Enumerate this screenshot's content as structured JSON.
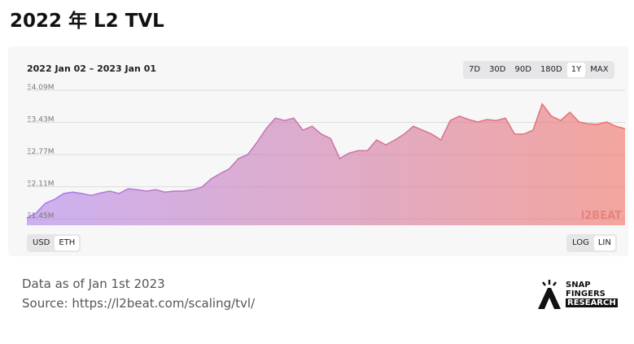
{
  "header": {
    "title": "2022 年 L2 TVL"
  },
  "chart_data": {
    "type": "area",
    "subtitle": "2022 Jan 02 – 2023 Jan 01",
    "values": [
      1.47,
      1.57,
      1.77,
      1.85,
      1.97,
      2.0,
      1.97,
      1.93,
      1.98,
      2.02,
      1.97,
      2.07,
      2.05,
      2.02,
      2.05,
      2.0,
      2.02,
      2.02,
      2.05,
      2.1,
      2.27,
      2.38,
      2.48,
      2.69,
      2.77,
      3.02,
      3.3,
      3.52,
      3.47,
      3.52,
      3.27,
      3.35,
      3.19,
      3.1,
      2.69,
      2.8,
      2.85,
      2.85,
      3.07,
      2.97,
      3.07,
      3.19,
      3.35,
      3.27,
      3.19,
      3.07,
      3.47,
      3.56,
      3.49,
      3.44,
      3.49,
      3.47,
      3.52,
      3.19,
      3.19,
      3.27,
      3.81,
      3.56,
      3.47,
      3.64,
      3.44,
      3.4,
      3.39,
      3.44,
      3.35,
      3.3
    ],
    "ylim": [
      1.32,
      4.14
    ],
    "yticks": [
      {
        "value": 1.45,
        "label": "Ξ1.45M"
      },
      {
        "value": 2.11,
        "label": "Ξ2.11M"
      },
      {
        "value": 2.77,
        "label": "Ξ2.77M"
      },
      {
        "value": 3.43,
        "label": "Ξ3.43M"
      },
      {
        "value": 4.09,
        "label": "Ξ4.09M"
      }
    ],
    "grid": true,
    "colors": [
      "#a978ea",
      "#f06f62"
    ],
    "watermark": "l2BEAT"
  },
  "controls": {
    "ranges": [
      "7D",
      "30D",
      "90D",
      "180D",
      "1Y",
      "MAX"
    ],
    "range_selected": 4,
    "currencies": [
      "USD",
      "ETH"
    ],
    "currency_selected": 1,
    "scales": [
      "LOG",
      "LIN"
    ],
    "scale_selected": 1
  },
  "footer": {
    "note": "Data as of Jan 1st 2023",
    "source": "Source: https://l2beat.com/scaling/tvl/"
  },
  "logo": {
    "lines": [
      "SNAP",
      "FINGERS",
      "RESEARCH"
    ]
  }
}
